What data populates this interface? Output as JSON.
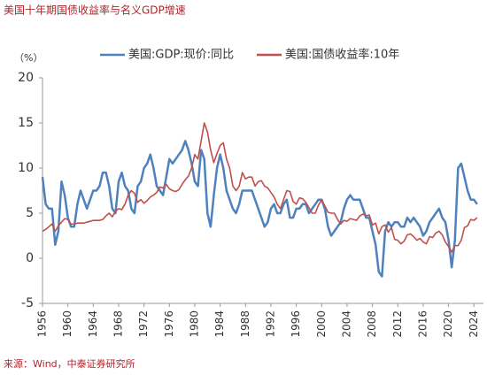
{
  "chart_data": {
    "type": "line",
    "title": "美国十年期国债收益率与名义GDP增速",
    "y_label": "（%）",
    "source": "来源：Wind，中泰证券研究所",
    "x": [
      1956,
      1956.5,
      1957,
      1957.5,
      1958,
      1958.5,
      1959,
      1959.5,
      1960,
      1960.5,
      1961,
      1961.5,
      1962,
      1962.5,
      1963,
      1963.5,
      1964,
      1964.5,
      1965,
      1965.5,
      1966,
      1966.5,
      1967,
      1967.5,
      1968,
      1968.5,
      1969,
      1969.5,
      1970,
      1970.5,
      1971,
      1971.5,
      1972,
      1972.5,
      1973,
      1973.5,
      1974,
      1974.5,
      1975,
      1975.5,
      1976,
      1976.5,
      1977,
      1977.5,
      1978,
      1978.5,
      1979,
      1979.5,
      1980,
      1980.5,
      1981,
      1981.5,
      1982,
      1982.5,
      1983,
      1983.5,
      1984,
      1984.5,
      1985,
      1985.5,
      1986,
      1986.5,
      1987,
      1987.5,
      1988,
      1988.5,
      1989,
      1989.5,
      1990,
      1990.5,
      1991,
      1991.5,
      1992,
      1992.5,
      1993,
      1993.5,
      1994,
      1994.5,
      1995,
      1995.5,
      1996,
      1996.5,
      1997,
      1997.5,
      1998,
      1998.5,
      1999,
      1999.5,
      2000,
      2000.5,
      2001,
      2001.5,
      2002,
      2002.5,
      2003,
      2003.5,
      2004,
      2004.5,
      2005,
      2005.5,
      2006,
      2006.5,
      2007,
      2007.5,
      2008,
      2008.5,
      2009,
      2009.5,
      2010,
      2010.5,
      2011,
      2011.5,
      2012,
      2012.5,
      2013,
      2013.5,
      2014,
      2014.5,
      2015,
      2015.5,
      2016,
      2016.5,
      2017,
      2017.5,
      2018,
      2018.5,
      2019,
      2019.5,
      2020,
      2020.5,
      2021,
      2021.5,
      2022,
      2022.5,
      2023,
      2023.5,
      2024,
      2024.5
    ],
    "series": [
      {
        "name": "美国:GDP:现价:同比",
        "color": "#4e81bd",
        "values": [
          9,
          6,
          5.5,
          5.5,
          1.5,
          3,
          8.5,
          7,
          4.5,
          3.5,
          3.5,
          6,
          7.5,
          6.5,
          5.5,
          6.5,
          7.5,
          7.5,
          8,
          9.5,
          9.5,
          8,
          5.5,
          5,
          8.5,
          9.5,
          8,
          7.5,
          5.5,
          5,
          8,
          8.5,
          10,
          10.5,
          11.5,
          10,
          8,
          7.5,
          7,
          9,
          11,
          10.5,
          11,
          11.5,
          12,
          13,
          12,
          10.5,
          8.5,
          8,
          12,
          11,
          5,
          3.5,
          7,
          10,
          11.5,
          10,
          7.5,
          6.5,
          5.5,
          5,
          6,
          7.5,
          7.5,
          7.5,
          7.5,
          6.5,
          5.5,
          4.5,
          3.5,
          4,
          5.5,
          6,
          5,
          5,
          6,
          6.5,
          4.5,
          4.5,
          5.5,
          5.5,
          6,
          6,
          5,
          5.5,
          6,
          6.5,
          6.5,
          5.5,
          3.5,
          2.5,
          3,
          3.5,
          4,
          5.5,
          6.5,
          7,
          6.5,
          6.5,
          6.5,
          5.5,
          4.5,
          4.5,
          3,
          1.5,
          -1.5,
          -2,
          3,
          4,
          3.5,
          4,
          4,
          3.5,
          3.5,
          4.5,
          4,
          4.5,
          4,
          3.5,
          2.5,
          3,
          4,
          4.5,
          5,
          5.5,
          4.5,
          4,
          2,
          -1,
          2,
          10,
          10.5,
          9,
          7.5,
          6.5,
          6.5,
          6
        ]
      },
      {
        "name": "美国:国债收益率:10年",
        "color": "#c0504d",
        "values": [
          3.0,
          3.2,
          3.5,
          3.8,
          3.0,
          3.6,
          4.0,
          4.4,
          4.3,
          3.8,
          3.8,
          3.9,
          3.9,
          3.9,
          4.0,
          4.1,
          4.2,
          4.2,
          4.2,
          4.3,
          4.7,
          5.0,
          4.6,
          5.2,
          5.5,
          5.4,
          6.0,
          7.0,
          7.5,
          7.2,
          6.2,
          6.5,
          6.1,
          6.4,
          6.8,
          7.0,
          7.3,
          7.9,
          7.8,
          8.2,
          7.7,
          7.5,
          7.4,
          7.6,
          8.2,
          8.7,
          9.1,
          10.0,
          11.5,
          11.0,
          13.0,
          15.0,
          14.0,
          12.0,
          10.6,
          11.6,
          12.5,
          12.8,
          11.0,
          10.0,
          8.0,
          7.5,
          8.0,
          9.5,
          8.8,
          9.0,
          9.0,
          8.0,
          8.5,
          8.6,
          8.0,
          7.8,
          7.3,
          6.8,
          6.0,
          5.5,
          6.5,
          7.5,
          7.4,
          6.3,
          6.0,
          6.7,
          6.6,
          6.2,
          5.6,
          5.0,
          5.0,
          5.9,
          6.5,
          5.8,
          5.1,
          5.0,
          5.0,
          4.3,
          3.8,
          4.2,
          4.1,
          4.4,
          4.3,
          4.2,
          4.7,
          4.9,
          4.7,
          4.8,
          3.7,
          3.9,
          2.7,
          3.5,
          3.7,
          2.9,
          3.4,
          2.1,
          2.0,
          1.6,
          1.9,
          2.6,
          2.7,
          2.4,
          2.0,
          2.2,
          1.8,
          1.6,
          2.4,
          2.3,
          2.8,
          3.0,
          2.6,
          1.8,
          1.3,
          0.7,
          1.4,
          1.4,
          2.0,
          3.4,
          3.6,
          4.3,
          4.2,
          4.5
        ]
      }
    ],
    "xlim": [
      1956,
      2025.5
    ],
    "xticks": [
      1956,
      1960,
      1964,
      1968,
      1972,
      1976,
      1980,
      1984,
      1988,
      1992,
      1996,
      2000,
      2004,
      2008,
      2012,
      2016,
      2020,
      2024
    ],
    "ylim": [
      -5,
      20
    ],
    "yticks": [
      -5,
      0,
      5,
      10,
      15,
      20
    ],
    "grid": false,
    "legend": "top"
  }
}
